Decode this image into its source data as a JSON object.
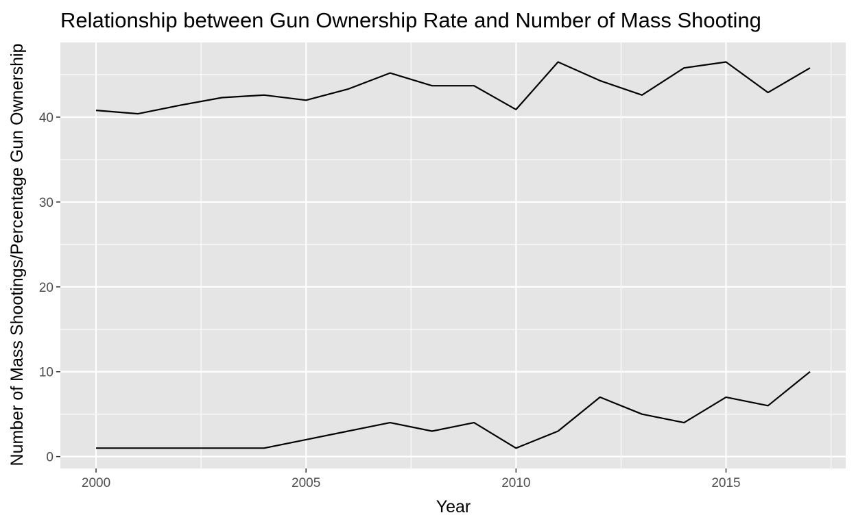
{
  "chart_data": {
    "type": "line",
    "title": "Relationship between Gun Ownership Rate and Number of Mass Shooting",
    "xlabel": "Year",
    "ylabel": "Number of Mass Shootings/Percentage Gun Ownership",
    "x": [
      2000,
      2001,
      2002,
      2003,
      2004,
      2005,
      2006,
      2007,
      2008,
      2009,
      2010,
      2011,
      2012,
      2013,
      2014,
      2015,
      2016,
      2017
    ],
    "series": [
      {
        "values": [
          40.8,
          40.4,
          41.4,
          42.3,
          42.6,
          42.0,
          43.3,
          45.2,
          43.7,
          43.7,
          40.9,
          46.5,
          44.3,
          42.6,
          45.8,
          46.5,
          42.9,
          45.8
        ]
      },
      {
        "values": [
          1,
          1,
          1,
          1,
          1,
          2,
          3,
          4,
          3,
          4,
          1,
          3,
          7,
          5,
          4,
          7,
          6,
          10
        ]
      }
    ],
    "xlim": [
      1999.15,
      2017.85
    ],
    "ylim": [
      -1.4,
      48.8
    ],
    "x_ticks": [
      "2000",
      "2005",
      "2010",
      "2015"
    ],
    "y_ticks": [
      "0",
      "10",
      "20",
      "30",
      "40"
    ],
    "grid": true,
    "colors": {
      "panel": "#e5e5e5",
      "grid": "#ffffff",
      "line": "#000000",
      "tick_text": "#4d4d4d"
    }
  }
}
